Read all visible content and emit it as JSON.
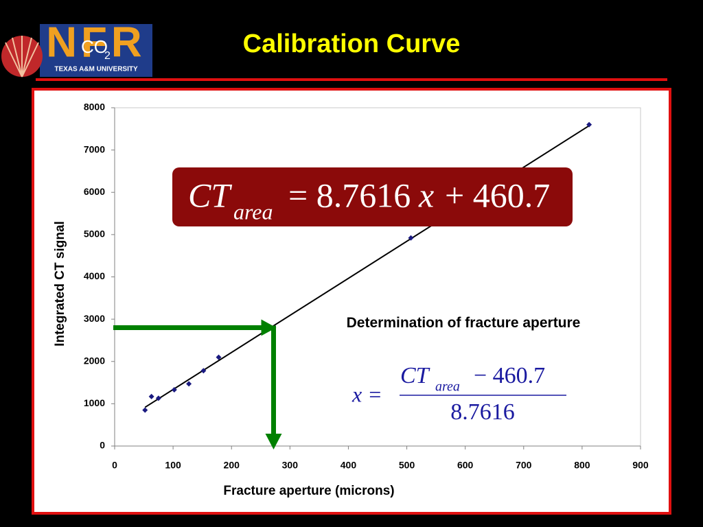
{
  "header": {
    "title": "Calibration Curve",
    "logo": {
      "letters": "NFR",
      "co": "CO",
      "sub": "2",
      "university": "TEXAS A&M UNIVERSITY"
    }
  },
  "chart_data": {
    "type": "scatter",
    "x": [
      52,
      63,
      75,
      102,
      127,
      152,
      178,
      507,
      812
    ],
    "y": [
      850,
      1170,
      1130,
      1330,
      1470,
      1780,
      2100,
      4920,
      7600
    ],
    "color": "#1a1a80",
    "xlim": [
      0,
      900
    ],
    "xticks": [
      0,
      100,
      200,
      300,
      400,
      500,
      600,
      700,
      800,
      900
    ],
    "ylim": [
      0,
      8000
    ],
    "yticks": [
      0,
      1000,
      2000,
      3000,
      4000,
      5000,
      6000,
      7000,
      8000
    ],
    "xlabel": "Fracture aperture (microns)",
    "ylabel": "Integrated CT signal",
    "trendline": {
      "x": [
        52,
        812
      ],
      "y": [
        916,
        7575
      ],
      "color": "#000000"
    },
    "arrow": {
      "x": 272,
      "y": 2800,
      "color": "#008000"
    },
    "equation": {
      "lhs": "CT",
      "sub": "area",
      "mid": "= 8.7616",
      "var": "x",
      "rhs": "+ 460.7"
    },
    "caption": "Determination of fracture aperture",
    "formula": {
      "lhs": "x =",
      "num": "CT",
      "sub": "area",
      "num_rest": "− 460.7",
      "den": "8.7616"
    }
  }
}
